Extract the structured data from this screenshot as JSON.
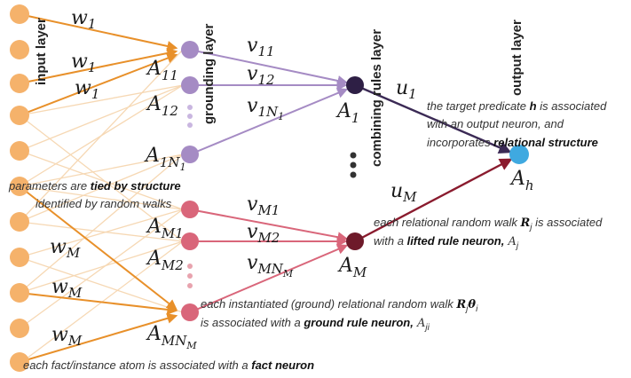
{
  "layers": {
    "input": "input layer",
    "grounding": "grounding layer",
    "combining": "combining rules layer",
    "output": "output layer"
  },
  "weights": {
    "w1": "w",
    "w1_sub": "1",
    "wM": "w",
    "wM_sub": "M",
    "v11": "v",
    "v11_sub": "11",
    "v12": "v",
    "v12_sub": "12",
    "v1N": "v",
    "v1N_sub": "1N",
    "v1N_subsub": "1",
    "vM1": "v",
    "vM1_sub": "M1",
    "vM2": "v",
    "vM2_sub": "M2",
    "vMN": "v",
    "vMN_sub": "MN",
    "vMN_subsub": "M",
    "u1": "u",
    "u1_sub": "1",
    "uM": "u",
    "uM_sub": "M"
  },
  "nodes": {
    "A11": "A",
    "A11_sub": "11",
    "A12": "A",
    "A12_sub": "12",
    "A1N": "A",
    "A1N_sub": "1N",
    "A1N_subsub": "1",
    "AM1": "A",
    "AM1_sub": "M1",
    "AM2": "A",
    "AM2_sub": "M2",
    "AMN": "A",
    "AMN_sub": "MN",
    "AMN_subsub": "M",
    "A1": "A",
    "A1_sub": "1",
    "AM": "A",
    "AM_sub": "M",
    "Ah": "A",
    "Ah_sub": "h"
  },
  "annotations": {
    "target_1a": "the target predicate ",
    "target_1b": "h",
    "target_1c": " is associated",
    "target_2": "with an output neuron, and",
    "target_3a": "incorporates ",
    "target_3b": "relational structure",
    "params_1a": "parameters are ",
    "params_1b": "tied by structure",
    "params_2": "identified by random walks",
    "lifted_1a": "each relational random walk ",
    "lifted_1b": "R",
    "lifted_1c": "j",
    "lifted_1d": " is associated",
    "lifted_2a": "with a ",
    "lifted_2b": "lifted rule neuron,",
    "lifted_2c": " A",
    "lifted_2d": "j",
    "ground_1a": "each instantiated (ground) relational random walk ",
    "ground_1b": "R",
    "ground_1c": "j",
    "ground_1d": "θ",
    "ground_1e": "i",
    "ground_2a": "is associated with a ",
    "ground_2b": "ground rule neuron,",
    "ground_2c": " A",
    "ground_2d": "ji",
    "fact_a": "each fact/instance atom is associated with a ",
    "fact_b": "fact neuron"
  },
  "colors": {
    "input_node": "#f5b26b",
    "grounding_upper": "#a58bc4",
    "grounding_lower": "#d9667a",
    "combining_upper": "#2e1f45",
    "combining_lower": "#6e1a2a",
    "output_node": "#3fa9e0",
    "edge_orange": "#e8902a",
    "edge_faint": "#f6d8b4",
    "edge_purple": "#a58bc4",
    "edge_pink": "#d9667a",
    "edge_dark_purple": "#3b2a55",
    "edge_dark_red": "#8a1b2e"
  }
}
